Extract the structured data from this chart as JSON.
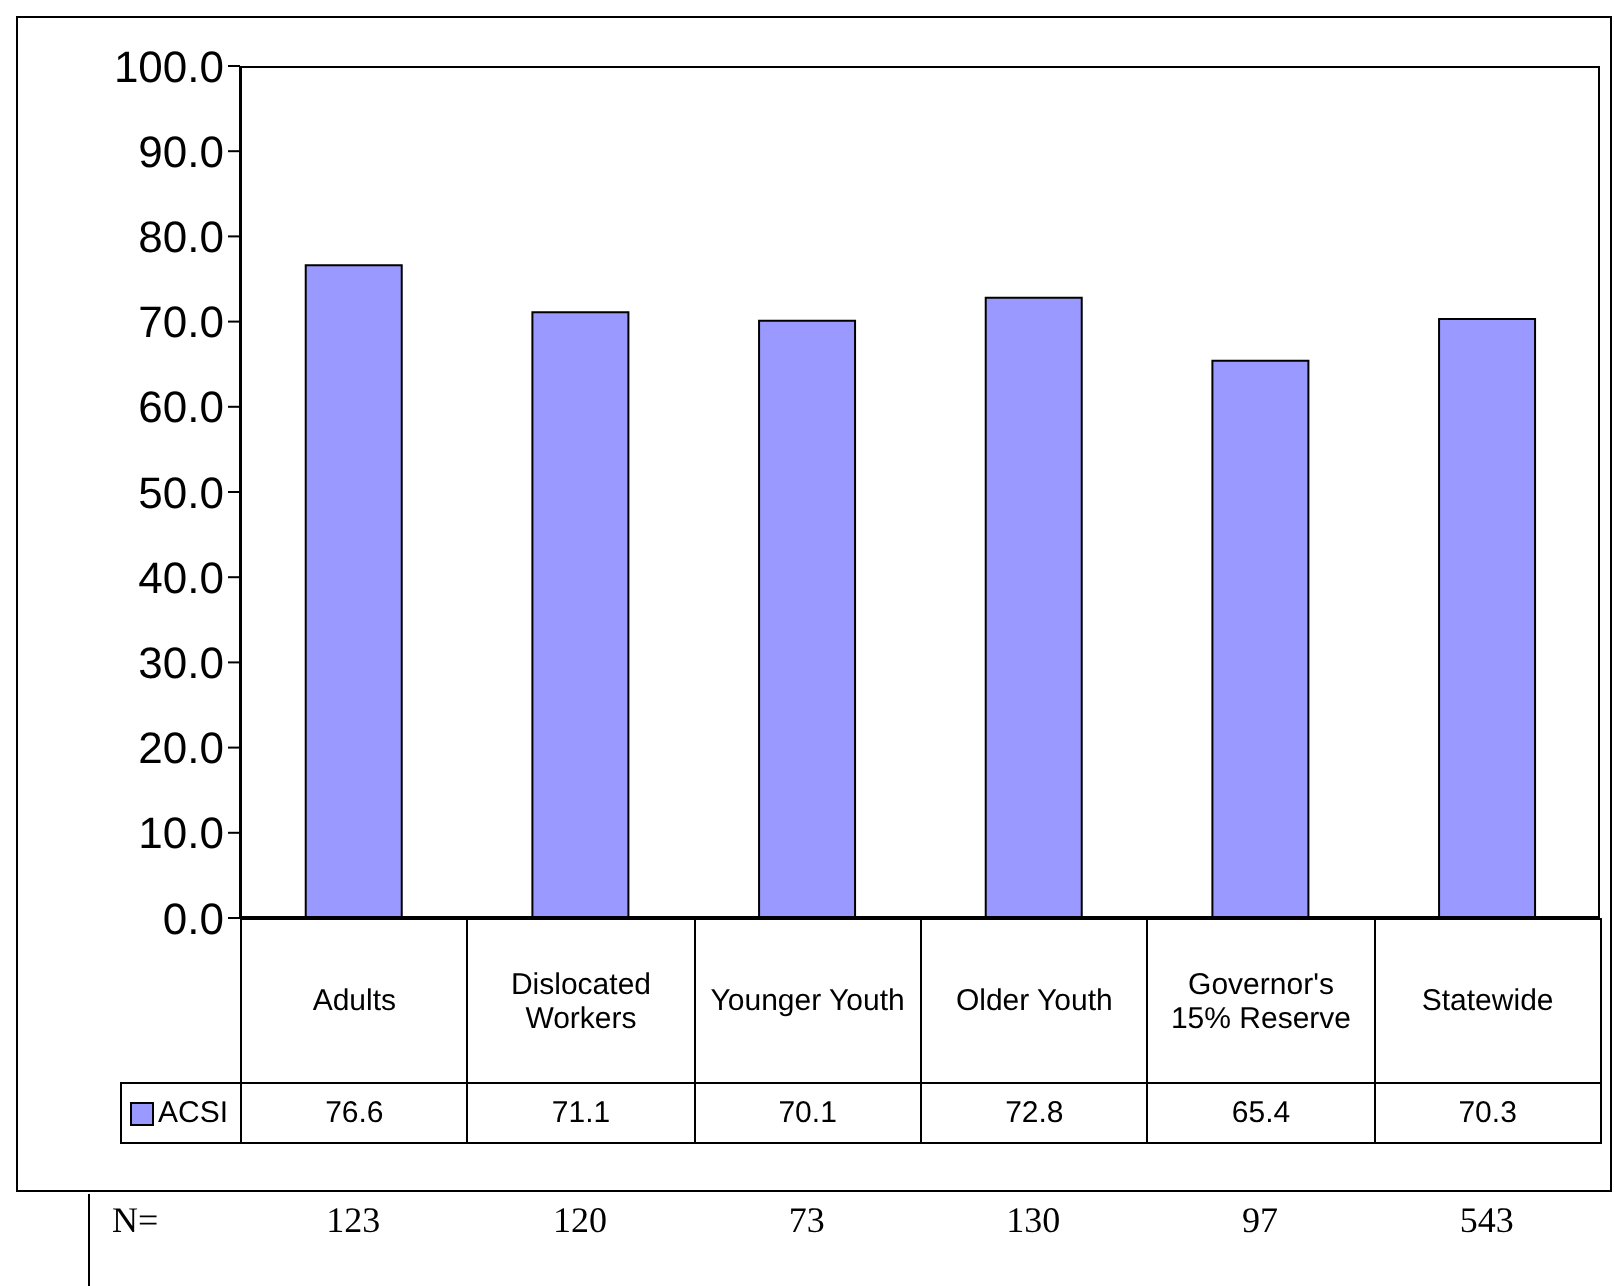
{
  "chart_data": {
    "type": "bar",
    "categories": [
      "Adults",
      "Dislocated Workers",
      "Younger Youth",
      "Older Youth",
      "Governor's 15% Reserve",
      "Statewide"
    ],
    "series": [
      {
        "name": "ACSI",
        "color": "#9999ff",
        "values": [
          76.6,
          71.1,
          70.1,
          72.8,
          65.4,
          70.3
        ]
      }
    ],
    "ylim": [
      0,
      100
    ],
    "yticks": [
      {
        "value": 0,
        "label": "0.0"
      },
      {
        "value": 10,
        "label": "10.0"
      },
      {
        "value": 20,
        "label": "20.0"
      },
      {
        "value": 30,
        "label": "30.0"
      },
      {
        "value": 40,
        "label": "40.0"
      },
      {
        "value": 50,
        "label": "50.0"
      },
      {
        "value": 60,
        "label": "60.0"
      },
      {
        "value": 70,
        "label": "70.0"
      },
      {
        "value": 80,
        "label": "80.0"
      },
      {
        "value": 90,
        "label": "90.0"
      },
      {
        "value": 100,
        "label": "100.0"
      }
    ],
    "data_labels": true,
    "legend": "bottom",
    "grid": false,
    "annotations": [
      "N=",
      "123",
      "120",
      "73",
      "130",
      "97",
      "543"
    ]
  }
}
